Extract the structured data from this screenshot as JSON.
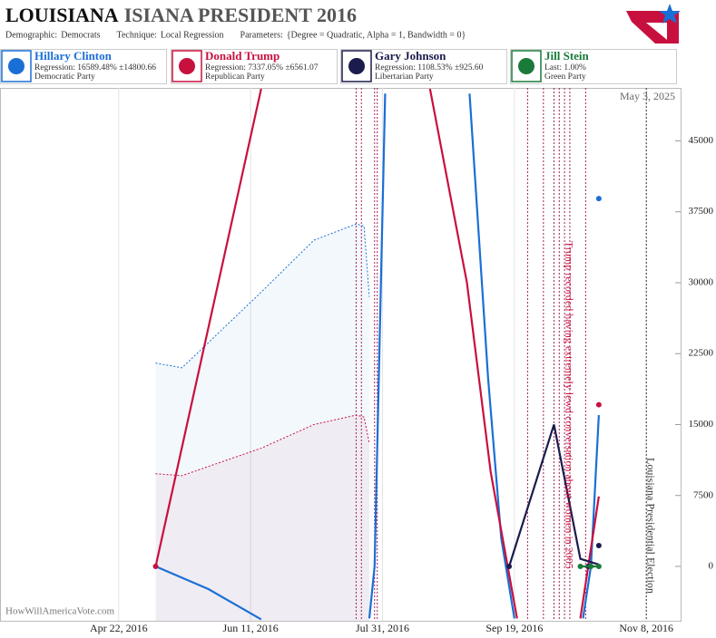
{
  "chart_data": {
    "type": "line",
    "title": "LOUISIANA",
    "title_rest": "ISIANA PRESIDENT 2016",
    "params": [
      {
        "label": "Demographic:",
        "value": "Democrats"
      },
      {
        "label": "Technique:",
        "value": "Local Regression"
      },
      {
        "label": "Parameters:",
        "value": "{Degree = Quadratic, Alpha = 1, Bandwidth = 0}"
      }
    ],
    "date_stamp": "May 3, 2025",
    "credit": "HowWillAmericaVote.com",
    "xlim": [
      "2016-03-08",
      "2016-11-21"
    ],
    "xticks": [
      {
        "value": "2016-04-22",
        "label": "Apr 22, 2016"
      },
      {
        "value": "2016-06-11",
        "label": "Jun 11, 2016"
      },
      {
        "value": "2016-07-31",
        "label": "Jul 31, 2016"
      },
      {
        "value": "2016-09-19",
        "label": "Sep 19, 2016"
      },
      {
        "value": "2016-11-08",
        "label": "Nov 8, 2016"
      }
    ],
    "ylim": [
      -5750,
      50600
    ],
    "yticks": [
      0,
      7500,
      15000,
      22500,
      30000,
      37500,
      45000
    ],
    "event_lines": [
      "2016-07-21",
      "2016-07-23",
      "2016-07-28",
      "2016-07-29",
      "2016-09-24",
      "2016-09-30",
      "2016-10-04",
      "2016-10-06",
      "2016-10-08",
      "2016-10-10",
      "2016-10-16"
    ],
    "event_color": "#a0205a",
    "annotations": [
      {
        "text": "Trump recorded having extremely lewd conversation about women in 2005",
        "x": "2016-10-08",
        "color": "#c8103e"
      },
      {
        "text": "Louisiana Presidential Election",
        "x": "2016-11-08",
        "color": "#333333"
      }
    ],
    "series": [
      {
        "name": "Hillary Clinton",
        "detail": "Regression: 16589.48% ±14800.66",
        "party": "Democratic Party",
        "color": "#1a6fd6",
        "x": [
          "2016-05-06",
          "2016-05-26",
          "2016-06-15",
          null,
          "2016-07-26",
          "2016-07-28",
          "2016-07-30",
          "2016-08-01",
          null,
          "2016-09-02",
          "2016-09-09",
          "2016-09-14",
          "2016-09-19",
          null,
          "2016-10-15",
          "2016-10-18",
          "2016-10-21"
        ],
        "values": [
          0,
          -2400,
          -5600,
          null,
          -5500,
          0,
          25000,
          50000,
          null,
          50000,
          20000,
          3000,
          -5500,
          null,
          -5500,
          0,
          16000
        ],
        "band_x": [
          "2016-05-06",
          "2016-05-16",
          "2016-06-15",
          "2016-07-05",
          "2016-07-21",
          "2016-07-24",
          "2016-07-26"
        ],
        "band_upper": [
          21500,
          21000,
          29000,
          34500,
          36200,
          36000,
          28500
        ],
        "points_x": [
          "2016-10-21"
        ],
        "points": [
          38900
        ]
      },
      {
        "name": "Donald Trump",
        "detail": "Regression: 7337.05% ±6561.07",
        "party": "Republican Party",
        "color": "#c8103e",
        "x": [
          "2016-05-06",
          "2016-06-15",
          null,
          "2016-08-18",
          "2016-09-01",
          "2016-09-10",
          "2016-09-20",
          null,
          "2016-10-14",
          "2016-10-21"
        ],
        "values": [
          0,
          50500,
          null,
          50500,
          30000,
          10000,
          -5500,
          null,
          -5500,
          7400
        ],
        "band_x": [
          "2016-05-06",
          "2016-05-16",
          "2016-06-15",
          "2016-07-05",
          "2016-07-21",
          "2016-07-24",
          "2016-07-26"
        ],
        "band_upper": [
          9800,
          9600,
          12500,
          15000,
          16000,
          15800,
          13000
        ],
        "points_x": [
          "2016-05-06",
          "2016-10-21"
        ],
        "points": [
          0,
          17100
        ]
      },
      {
        "name": "Gary Johnson",
        "detail": "Regression: 1108.53% ±925.60",
        "party": "Libertarian Party",
        "color": "#1b1b4d",
        "x": [
          "2016-09-17",
          "2016-10-04",
          "2016-10-14",
          "2016-10-21"
        ],
        "values": [
          0,
          15000,
          800,
          200
        ],
        "points_x": [
          "2016-09-17",
          "2016-10-17",
          "2016-10-21"
        ],
        "points": [
          0,
          0,
          2200
        ]
      },
      {
        "name": "Jill Stein",
        "detail": "Last: 1.00%",
        "party": "Green Party",
        "color": "#1a7a3a",
        "x": [
          "2016-10-14",
          "2016-10-21"
        ],
        "values": [
          0,
          0
        ],
        "points_x": [
          "2016-10-14",
          "2016-10-18",
          "2016-10-21"
        ],
        "points": [
          0,
          0,
          0
        ]
      }
    ]
  }
}
